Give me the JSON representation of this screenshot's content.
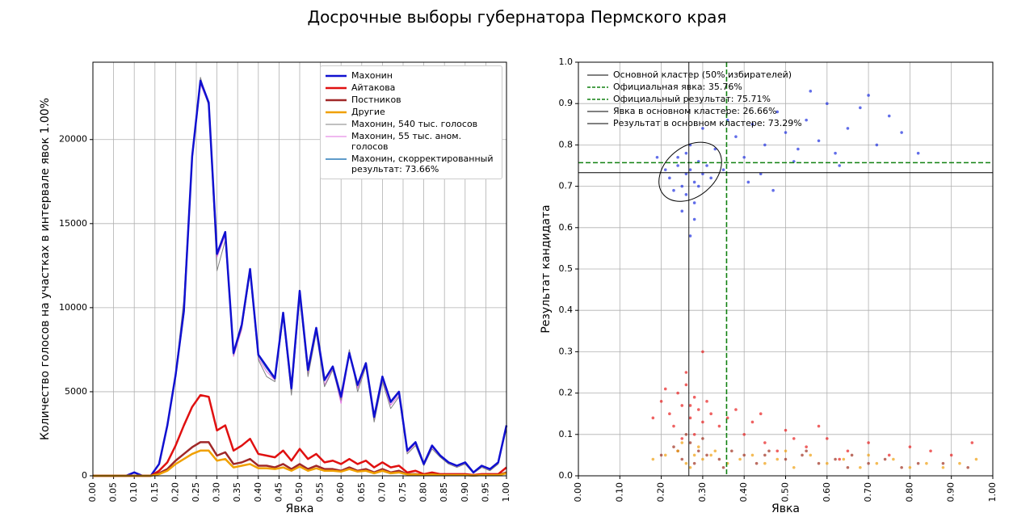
{
  "title": "Досрочные выборы губернатора Пермского края",
  "chart_data": [
    {
      "type": "line",
      "xlabel": "Явка",
      "ylabel": "Количество голосов на участках в интервале явок 1.00%",
      "xlim": [
        0,
        1
      ],
      "ylim": [
        0,
        24600
      ],
      "xticks": [
        {
          "value": 0,
          "label": "0.00"
        },
        {
          "value": 0.05,
          "label": "0.05"
        },
        {
          "value": 0.1,
          "label": "0.10"
        },
        {
          "value": 0.15,
          "label": "0.15"
        },
        {
          "value": 0.2,
          "label": "0.20"
        },
        {
          "value": 0.25,
          "label": "0.25"
        },
        {
          "value": 0.3,
          "label": "0.30"
        },
        {
          "value": 0.35,
          "label": "0.35"
        },
        {
          "value": 0.4,
          "label": "0.40"
        },
        {
          "value": 0.45,
          "label": "0.45"
        },
        {
          "value": 0.5,
          "label": "0.50"
        },
        {
          "value": 0.55,
          "label": "0.55"
        },
        {
          "value": 0.6,
          "label": "0.60"
        },
        {
          "value": 0.65,
          "label": "0.65"
        },
        {
          "value": 0.7,
          "label": "0.70"
        },
        {
          "value": 0.75,
          "label": "0.75"
        },
        {
          "value": 0.8,
          "label": "0.80"
        },
        {
          "value": 0.85,
          "label": "0.85"
        },
        {
          "value": 0.9,
          "label": "0.90"
        },
        {
          "value": 0.95,
          "label": "0.95"
        },
        {
          "value": 1,
          "label": "1.00"
        }
      ],
      "yticks": [
        0,
        5000,
        10000,
        15000,
        20000
      ],
      "grid": true,
      "legend": "upper right",
      "x": [
        0,
        0.02,
        0.04,
        0.06,
        0.08,
        0.1,
        0.12,
        0.14,
        0.16,
        0.18,
        0.2,
        0.22,
        0.24,
        0.26,
        0.28,
        0.3,
        0.32,
        0.34,
        0.36,
        0.38,
        0.4,
        0.42,
        0.44,
        0.46,
        0.48,
        0.5,
        0.52,
        0.54,
        0.56,
        0.58,
        0.6,
        0.62,
        0.64,
        0.66,
        0.68,
        0.7,
        0.72,
        0.74,
        0.76,
        0.78,
        0.8,
        0.82,
        0.84,
        0.86,
        0.88,
        0.9,
        0.92,
        0.94,
        0.96,
        0.98,
        1
      ],
      "series": [
        {
          "name": "Махонин",
          "color": "#1010d0",
          "linewidth": 2.5,
          "values": [
            0,
            0,
            0,
            0,
            0,
            200,
            0,
            0,
            700,
            3000,
            6000,
            9800,
            19000,
            23500,
            22200,
            13200,
            14500,
            7300,
            9000,
            12300,
            7200,
            6500,
            5800,
            9700,
            5200,
            11000,
            6300,
            8800,
            5700,
            6500,
            4700,
            7300,
            5400,
            6700,
            3500,
            5900,
            4400,
            5000,
            1500,
            2000,
            700,
            1800,
            1200,
            800,
            600,
            800,
            200,
            600,
            400,
            800,
            3000
          ]
        },
        {
          "name": "Айтакова",
          "color": "#e01010",
          "linewidth": 2.5,
          "values": [
            0,
            0,
            0,
            0,
            0,
            0,
            0,
            0,
            300,
            800,
            1800,
            3000,
            4100,
            4800,
            4700,
            2700,
            3000,
            1500,
            1800,
            2200,
            1300,
            1200,
            1100,
            1500,
            900,
            1600,
            1000,
            1300,
            800,
            900,
            700,
            1000,
            700,
            900,
            500,
            800,
            500,
            600,
            200,
            300,
            100,
            200,
            100,
            100,
            100,
            100,
            50,
            100,
            100,
            100,
            500
          ]
        },
        {
          "name": "Постников",
          "color": "#a02828",
          "linewidth": 2.5,
          "values": [
            0,
            0,
            0,
            0,
            0,
            0,
            0,
            0,
            150,
            400,
            900,
            1300,
            1700,
            2000,
            2000,
            1200,
            1400,
            700,
            800,
            1000,
            600,
            600,
            500,
            700,
            400,
            700,
            400,
            600,
            400,
            400,
            300,
            500,
            300,
            400,
            200,
            400,
            200,
            300,
            100,
            100,
            50,
            100,
            50,
            50,
            50,
            50,
            20,
            50,
            50,
            50,
            200
          ]
        },
        {
          "name": "Другие",
          "color": "#f0a000",
          "linewidth": 2.5,
          "values": [
            0,
            0,
            0,
            0,
            0,
            0,
            0,
            0,
            100,
            300,
            700,
            1000,
            1300,
            1500,
            1500,
            900,
            1000,
            500,
            600,
            700,
            450,
            450,
            400,
            500,
            300,
            550,
            300,
            450,
            300,
            300,
            250,
            400,
            250,
            300,
            150,
            300,
            150,
            200,
            80,
            80,
            40,
            80,
            40,
            40,
            40,
            40,
            20,
            40,
            40,
            40,
            150
          ]
        },
        {
          "name": "Махонин, 540 тыс. голосов",
          "color": "#808080",
          "linewidth": 1,
          "values": [
            0,
            0,
            0,
            0,
            0,
            200,
            0,
            0,
            700,
            3000,
            6100,
            10500,
            19200,
            23700,
            22000,
            12200,
            14000,
            7200,
            8800,
            12000,
            6900,
            5900,
            5600,
            9400,
            4800,
            10600,
            5900,
            8500,
            5300,
            6300,
            4500,
            7500,
            5000,
            6500,
            3200,
            5600,
            4000,
            4700,
            1300,
            1800,
            600,
            1600,
            1100,
            700,
            500,
            700,
            150,
            500,
            300,
            700,
            2800
          ]
        },
        {
          "name": "Махонин, 55 тыс. аном. голосов",
          "color": "#e070e0",
          "linewidth": 1,
          "values": [
            0,
            0,
            0,
            0,
            0,
            200,
            0,
            0,
            700,
            3000,
            6000,
            9900,
            18800,
            23300,
            22100,
            13000,
            14300,
            7100,
            8700,
            12100,
            7000,
            6200,
            5700,
            9500,
            5000,
            10800,
            6100,
            8600,
            5400,
            6400,
            4300,
            7200,
            5200,
            6600,
            3300,
            5700,
            4200,
            4800,
            1400,
            1900,
            650,
            1700,
            1150,
            750,
            550,
            750,
            180,
            550,
            350,
            750,
            2900
          ]
        },
        {
          "name": "Махонин, скорректированный результат: 73.66%",
          "color": "#2a7ab8",
          "linewidth": 1.5,
          "values": [
            0,
            0,
            0,
            0,
            0,
            200,
            0,
            0,
            700,
            2950,
            5900,
            9700,
            18900,
            23400,
            22100,
            13100,
            14400,
            7250,
            8900,
            12200,
            7150,
            6400,
            5750,
            9600,
            5150,
            10900,
            6250,
            8700,
            5650,
            6450,
            4650,
            7250,
            5350,
            6650,
            3450,
            5850,
            4350,
            4950,
            1450,
            1950,
            680,
            1750,
            1180,
            780,
            580,
            780,
            190,
            580,
            380,
            780,
            2950
          ]
        }
      ]
    },
    {
      "type": "scatter",
      "xlabel": "Явка",
      "ylabel": "Результат кандидата",
      "xlim": [
        0,
        1
      ],
      "ylim": [
        0,
        1
      ],
      "xticks": [
        {
          "value": 0,
          "label": "0.00"
        },
        {
          "value": 0.1,
          "label": "0.10"
        },
        {
          "value": 0.2,
          "label": "0.20"
        },
        {
          "value": 0.3,
          "label": "0.30"
        },
        {
          "value": 0.4,
          "label": "0.40"
        },
        {
          "value": 0.5,
          "label": "0.50"
        },
        {
          "value": 0.6,
          "label": "0.60"
        },
        {
          "value": 0.7,
          "label": "0.70"
        },
        {
          "value": 0.8,
          "label": "0.80"
        },
        {
          "value": 0.9,
          "label": "0.90"
        },
        {
          "value": 1,
          "label": "1.00"
        }
      ],
      "yticks": [
        {
          "value": 0,
          "label": "0.0"
        },
        {
          "value": 0.1,
          "label": "0.1"
        },
        {
          "value": 0.2,
          "label": "0.2"
        },
        {
          "value": 0.3,
          "label": "0.3"
        },
        {
          "value": 0.4,
          "label": "0.4"
        },
        {
          "value": 0.5,
          "label": "0.5"
        },
        {
          "value": 0.6,
          "label": "0.6"
        },
        {
          "value": 0.7,
          "label": "0.7"
        },
        {
          "value": 0.8,
          "label": "0.8"
        },
        {
          "value": 0.9,
          "label": "0.9"
        },
        {
          "value": 1,
          "label": "1.0"
        }
      ],
      "grid": true,
      "legend": "upper left",
      "series": [
        {
          "color": "#2030e0",
          "x": [
            0.22,
            0.24,
            0.25,
            0.26,
            0.27,
            0.28,
            0.29,
            0.3,
            0.23,
            0.26,
            0.28,
            0.31,
            0.25,
            0.27,
            0.29,
            0.24,
            0.32,
            0.21,
            0.26,
            0.28,
            0.33,
            0.35,
            0.38,
            0.4,
            0.42,
            0.45,
            0.48,
            0.5,
            0.52,
            0.55,
            0.58,
            0.6,
            0.62,
            0.65,
            0.68,
            0.7,
            0.72,
            0.75,
            0.78,
            0.44,
            0.56,
            0.63,
            0.47,
            0.36,
            0.53,
            0.82,
            0.27,
            0.3,
            0.19,
            0.41
          ],
          "y": [
            0.72,
            0.75,
            0.7,
            0.73,
            0.74,
            0.71,
            0.76,
            0.73,
            0.69,
            0.78,
            0.66,
            0.75,
            0.64,
            0.8,
            0.7,
            0.77,
            0.72,
            0.74,
            0.68,
            0.62,
            0.79,
            0.74,
            0.82,
            0.77,
            0.85,
            0.8,
            0.88,
            0.83,
            0.76,
            0.86,
            0.81,
            0.9,
            0.78,
            0.84,
            0.89,
            0.92,
            0.8,
            0.87,
            0.83,
            0.73,
            0.93,
            0.75,
            0.69,
            0.86,
            0.79,
            0.78,
            0.58,
            0.84,
            0.77,
            0.71
          ]
        },
        {
          "color": "#e82020",
          "x": [
            0.2,
            0.22,
            0.24,
            0.25,
            0.26,
            0.27,
            0.28,
            0.29,
            0.3,
            0.31,
            0.23,
            0.26,
            0.28,
            0.32,
            0.21,
            0.25,
            0.27,
            0.34,
            0.36,
            0.4,
            0.45,
            0.5,
            0.55,
            0.6,
            0.65,
            0.7,
            0.75,
            0.8,
            0.85,
            0.9,
            0.38,
            0.42,
            0.48,
            0.52,
            0.58,
            0.18,
            0.95,
            0.63,
            0.44,
            0.3
          ],
          "y": [
            0.18,
            0.15,
            0.2,
            0.17,
            0.22,
            0.14,
            0.19,
            0.16,
            0.13,
            0.18,
            0.12,
            0.25,
            0.1,
            0.15,
            0.21,
            0.09,
            0.17,
            0.12,
            0.14,
            0.1,
            0.08,
            0.11,
            0.07,
            0.09,
            0.06,
            0.08,
            0.05,
            0.07,
            0.06,
            0.05,
            0.16,
            0.13,
            0.06,
            0.09,
            0.12,
            0.14,
            0.08,
            0.04,
            0.15,
            0.3
          ]
        },
        {
          "color": "#a03020",
          "x": [
            0.2,
            0.23,
            0.25,
            0.27,
            0.29,
            0.31,
            0.34,
            0.37,
            0.4,
            0.43,
            0.46,
            0.5,
            0.54,
            0.58,
            0.62,
            0.66,
            0.7,
            0.74,
            0.78,
            0.82,
            0.26,
            0.28,
            0.24,
            0.3,
            0.35,
            0.45,
            0.55,
            0.65,
            0.88,
            0.94
          ],
          "y": [
            0.05,
            0.07,
            0.04,
            0.08,
            0.06,
            0.05,
            0.04,
            0.06,
            0.05,
            0.03,
            0.06,
            0.04,
            0.05,
            0.03,
            0.04,
            0.05,
            0.03,
            0.04,
            0.02,
            0.03,
            0.1,
            0.03,
            0.06,
            0.09,
            0.02,
            0.05,
            0.06,
            0.02,
            0.03,
            0.02
          ]
        },
        {
          "color": "#f0a010",
          "x": [
            0.18,
            0.21,
            0.24,
            0.26,
            0.28,
            0.3,
            0.33,
            0.36,
            0.39,
            0.42,
            0.45,
            0.48,
            0.52,
            0.56,
            0.6,
            0.64,
            0.68,
            0.72,
            0.76,
            0.8,
            0.84,
            0.88,
            0.92,
            0.96,
            0.25,
            0.27,
            0.29,
            0.32,
            0.5,
            0.7
          ],
          "y": [
            0.04,
            0.05,
            0.06,
            0.03,
            0.05,
            0.04,
            0.06,
            0.03,
            0.04,
            0.05,
            0.03,
            0.04,
            0.02,
            0.05,
            0.03,
            0.04,
            0.02,
            0.03,
            0.04,
            0.02,
            0.03,
            0.02,
            0.03,
            0.04,
            0.08,
            0.02,
            0.07,
            0.05,
            0.06,
            0.05
          ]
        }
      ],
      "ellipse": {
        "name": "Основной кластер (50% избирателей)",
        "color": "#000000",
        "center": [
          0.27,
          0.735
        ],
        "width": 0.17,
        "height": 0.12,
        "angle": 40
      },
      "lines": [
        {
          "name": "Официальная явка: 35.76%",
          "axis": "x",
          "value": 0.3576,
          "color": "#108010",
          "dashed": true
        },
        {
          "name": "Официальный результат: 75.71%",
          "axis": "y",
          "value": 0.7571,
          "color": "#108010",
          "dashed": true
        },
        {
          "name": "Явка в основном кластере: 26.66%",
          "axis": "x",
          "value": 0.2666,
          "color": "#000000",
          "dashed": false
        },
        {
          "name": "Результат в основном кластере: 73.29%",
          "axis": "y",
          "value": 0.7329,
          "color": "#000000",
          "dashed": false
        }
      ]
    }
  ]
}
